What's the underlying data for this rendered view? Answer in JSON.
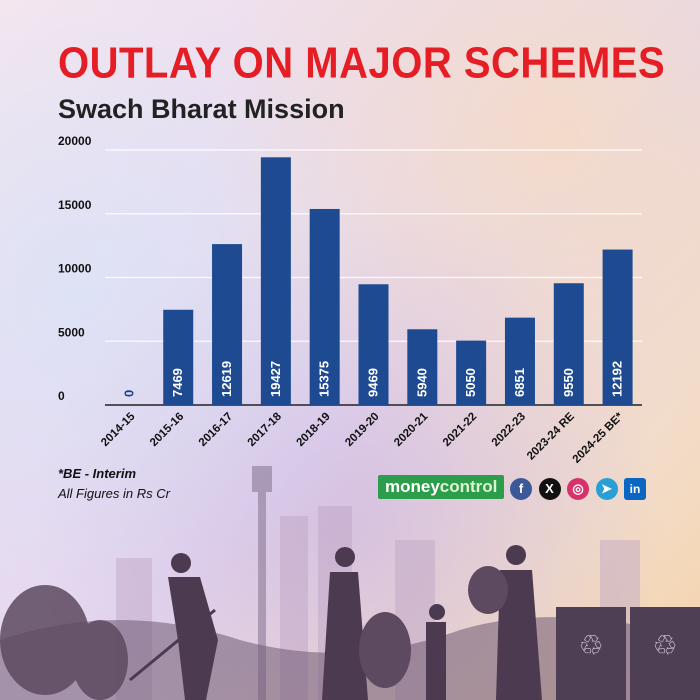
{
  "title": "OUTLAY ON MAJOR SCHEMES",
  "subtitle": "Swach Bharat Mission",
  "colors": {
    "title": "#e51d24",
    "bar": "#1d4a91",
    "axis": "#222222",
    "grid": "#ffffff",
    "brand": "#2c9d4a"
  },
  "chart_data": {
    "type": "bar",
    "categories": [
      "2014-15",
      "2015-16",
      "2016-17",
      "2017-18",
      "2018-19",
      "2019-20",
      "2020-21",
      "2021-22",
      "2022-23",
      "2023-24 RE",
      "2024-25 BE*"
    ],
    "values": [
      0,
      7469,
      12619,
      19427,
      15375,
      9469,
      5940,
      5050,
      6851,
      9550,
      12192
    ],
    "value_labels": [
      "0",
      "7469",
      "12619",
      "19427",
      "15375",
      "9469",
      "5940",
      "5050",
      "6851",
      "9550",
      "12192"
    ],
    "yticks": [
      "0",
      "5000",
      "10000",
      "15000",
      "20000"
    ],
    "ylim": [
      0,
      20000
    ],
    "grid": true,
    "legend": "none",
    "xlabel": "",
    "ylabel": ""
  },
  "notes": {
    "interim": "*BE - Interim",
    "units": "All Figures in Rs Cr"
  },
  "brand": {
    "part1": "money",
    "part2": "control"
  },
  "social_icons": [
    {
      "name": "facebook-icon",
      "glyph": "f",
      "color": "#3b5998"
    },
    {
      "name": "x-icon",
      "glyph": "X",
      "color": "#111111"
    },
    {
      "name": "instagram-icon",
      "glyph": "◎",
      "color": "#d6336c"
    },
    {
      "name": "telegram-icon",
      "glyph": "➤",
      "color": "#2a9fd6"
    },
    {
      "name": "linkedin-icon",
      "glyph": "in",
      "color": "#0a66c2"
    }
  ]
}
